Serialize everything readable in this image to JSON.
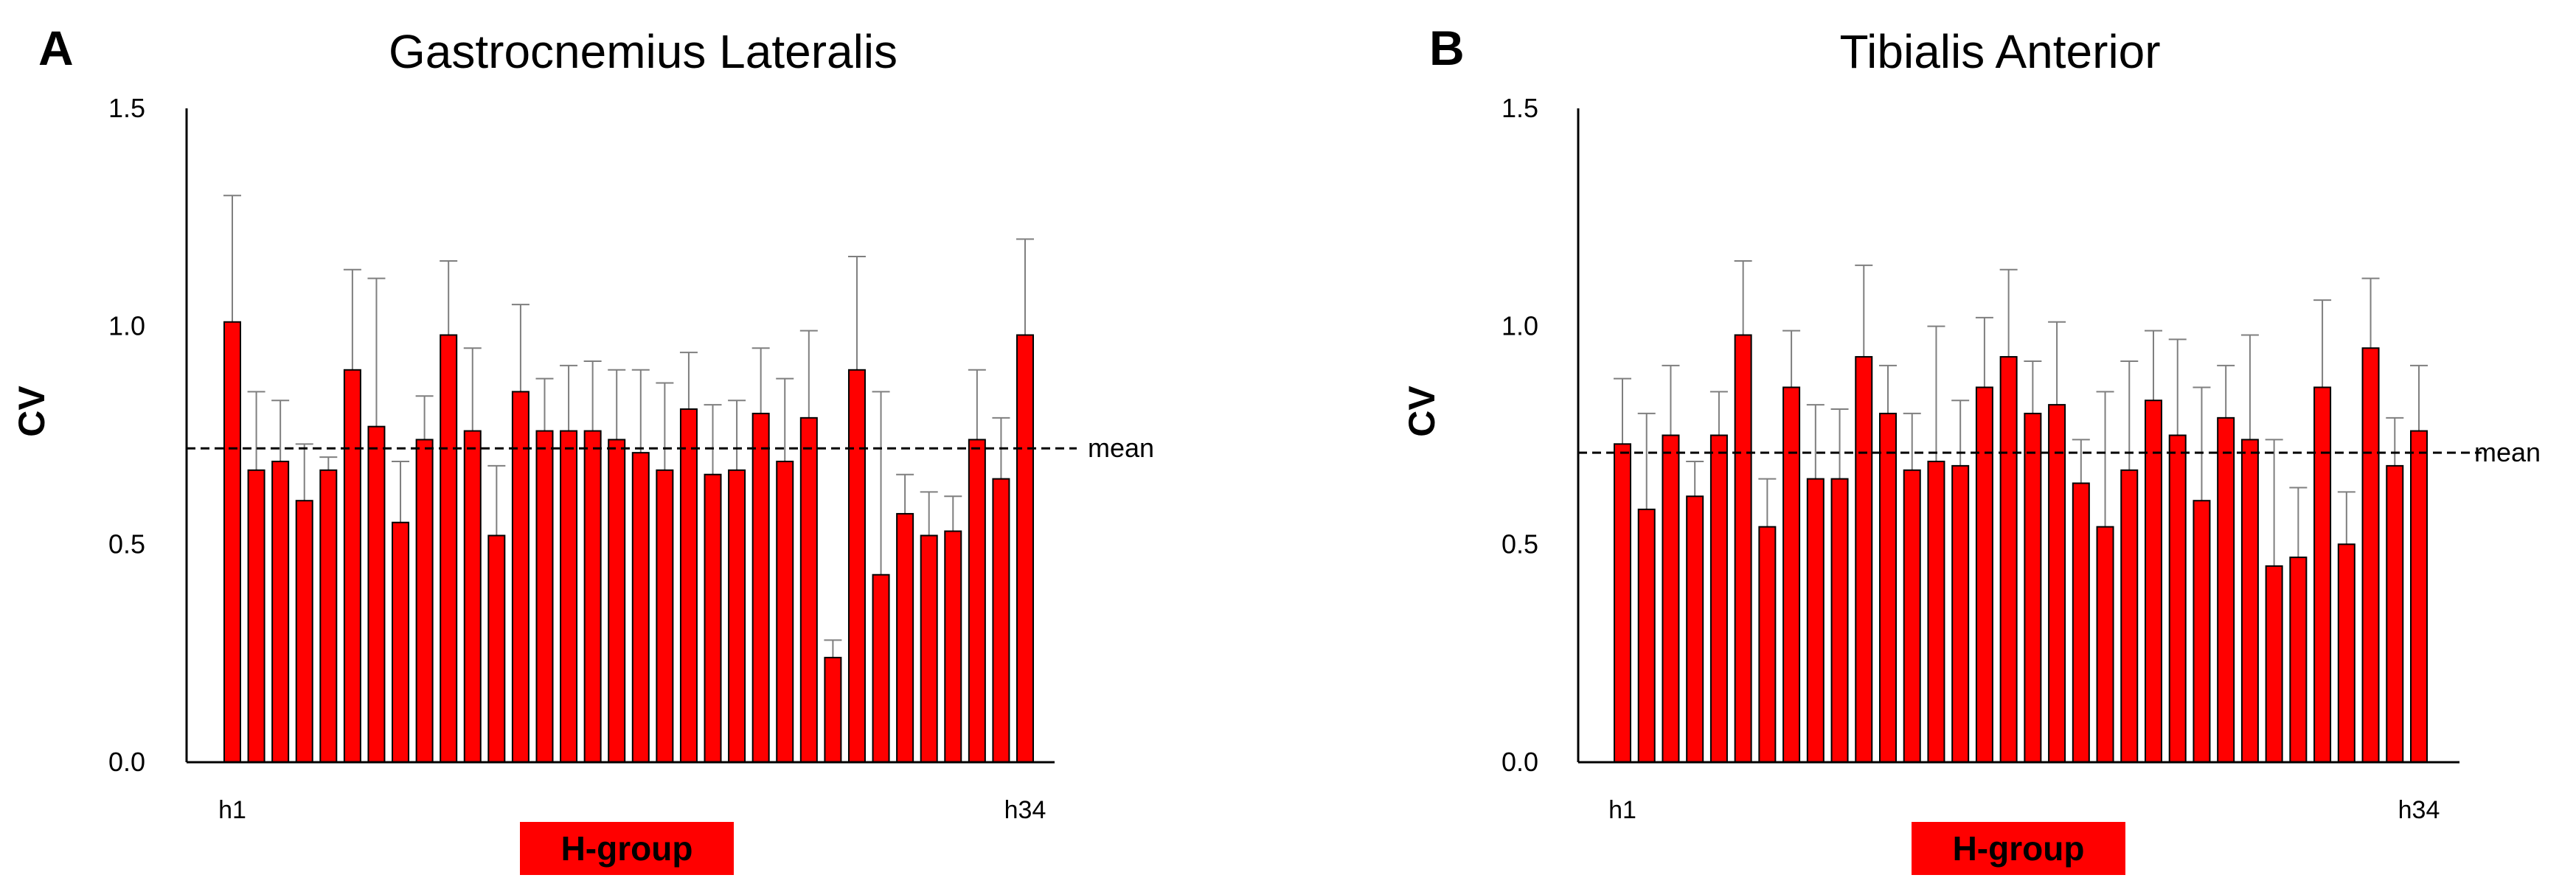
{
  "chart_data": [
    {
      "type": "bar",
      "panel": "A",
      "title": "Gastrocnemius Lateralis",
      "ylabel": "CV",
      "xlabel": "H-group",
      "ylim": [
        0,
        1.5
      ],
      "yticks": [
        "0.0",
        "0.5",
        "1.0",
        "1.5"
      ],
      "first_category": "h1",
      "last_category": "h34",
      "mean": 0.72,
      "mean_label": "mean",
      "bar_color": "#ff0000",
      "group_color": "#ff0000",
      "values": [
        1.01,
        0.67,
        0.69,
        0.6,
        0.67,
        0.9,
        0.77,
        0.55,
        0.74,
        0.98,
        0.76,
        0.52,
        0.85,
        0.76,
        0.76,
        0.76,
        0.74,
        0.71,
        0.67,
        0.81,
        0.66,
        0.67,
        0.8,
        0.69,
        0.79,
        0.24,
        0.9,
        0.43,
        0.57,
        0.52,
        0.53,
        0.74,
        0.65,
        0.98
      ],
      "errors": [
        0.29,
        0.18,
        0.14,
        0.13,
        0.03,
        0.23,
        0.34,
        0.14,
        0.1,
        0.17,
        0.19,
        0.16,
        0.2,
        0.12,
        0.15,
        0.16,
        0.16,
        0.19,
        0.2,
        0.13,
        0.16,
        0.16,
        0.15,
        0.19,
        0.2,
        0.04,
        0.26,
        0.42,
        0.09,
        0.1,
        0.08,
        0.16,
        0.14,
        0.22
      ]
    },
    {
      "type": "bar",
      "panel": "B",
      "title": "Tibialis Anterior",
      "ylabel": "CV",
      "xlabel": "H-group",
      "ylim": [
        0,
        1.5
      ],
      "yticks": [
        "0.0",
        "0.5",
        "1.0",
        "1.5"
      ],
      "first_category": "h1",
      "last_category": "h34",
      "mean": 0.71,
      "mean_label": "mean",
      "bar_color": "#ff0000",
      "group_color": "#ff0000",
      "values": [
        0.73,
        0.58,
        0.75,
        0.61,
        0.75,
        0.98,
        0.54,
        0.86,
        0.65,
        0.65,
        0.93,
        0.8,
        0.67,
        0.69,
        0.68,
        0.86,
        0.93,
        0.8,
        0.82,
        0.64,
        0.54,
        0.67,
        0.83,
        0.75,
        0.6,
        0.79,
        0.74,
        0.45,
        0.47,
        0.86,
        0.5,
        0.95,
        0.68,
        0.76
      ],
      "errors": [
        0.15,
        0.22,
        0.16,
        0.08,
        0.1,
        0.17,
        0.11,
        0.13,
        0.17,
        0.16,
        0.21,
        0.11,
        0.13,
        0.31,
        0.15,
        0.16,
        0.2,
        0.12,
        0.19,
        0.1,
        0.31,
        0.25,
        0.16,
        0.22,
        0.26,
        0.12,
        0.24,
        0.29,
        0.16,
        0.2,
        0.12,
        0.16,
        0.11,
        0.15
      ]
    }
  ]
}
